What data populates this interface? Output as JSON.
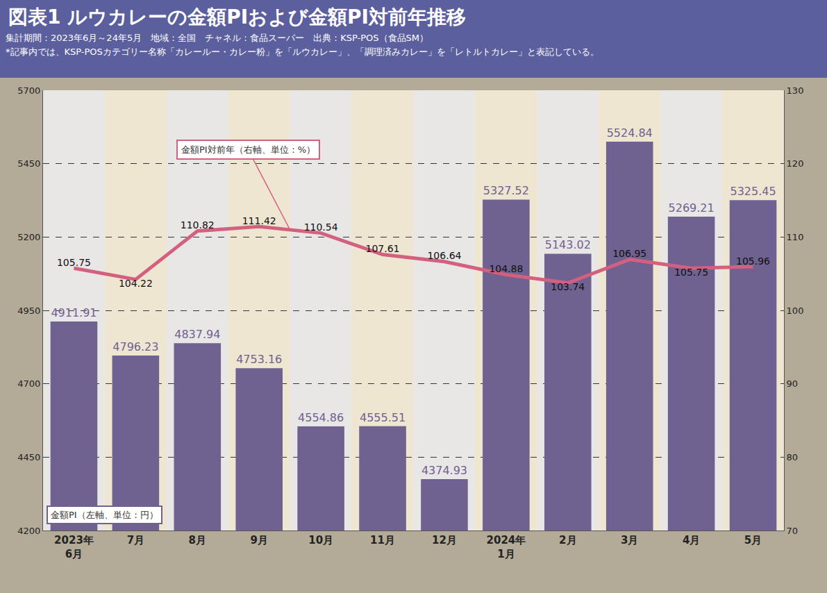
{
  "chart_data": {
    "type": "bar",
    "title": "図表1 ルウカレーの金額PIおよび金額PI対前年推移",
    "subtitle": [
      "集計期間：2023年6月～24年5月　地域：全国　チャネル：食品スーパー　出典：KSP-POS（食品SM）",
      "*記事内では、KSP-POSカテゴリー名称「カレールー・カレー粉」を「ルウカレー」、「調理済みカレー」を「レトルトカレー」と表記している。"
    ],
    "categories": [
      "2023年\n6月",
      "7月",
      "8月",
      "9月",
      "10月",
      "11月",
      "12月",
      "2024年\n1月",
      "2月",
      "3月",
      "4月",
      "5月"
    ],
    "series": [
      {
        "name": "金額PI（左軸、単位：円）",
        "type": "bar",
        "color": "#6f6190",
        "values": [
          4911.91,
          4796.23,
          4837.94,
          4753.16,
          4554.86,
          4555.51,
          4374.93,
          5327.52,
          5143.02,
          5524.84,
          5269.21,
          5325.45
        ]
      },
      {
        "name": "金額PI対前年（右軸、単位：%）",
        "type": "line",
        "axis": "y2",
        "color": "#d4607f",
        "values": [
          105.75,
          104.22,
          110.82,
          111.42,
          110.54,
          107.61,
          106.64,
          104.88,
          103.74,
          106.95,
          105.75,
          105.96
        ]
      }
    ],
    "ylim": [
      4200,
      5700
    ],
    "yticks": [
      4200,
      4450,
      4700,
      4950,
      5200,
      5450,
      5700
    ],
    "y2lim": [
      70,
      130
    ],
    "y2ticks": [
      70,
      80,
      90,
      100,
      110,
      120,
      130
    ],
    "grid": true,
    "data_labels": true
  }
}
